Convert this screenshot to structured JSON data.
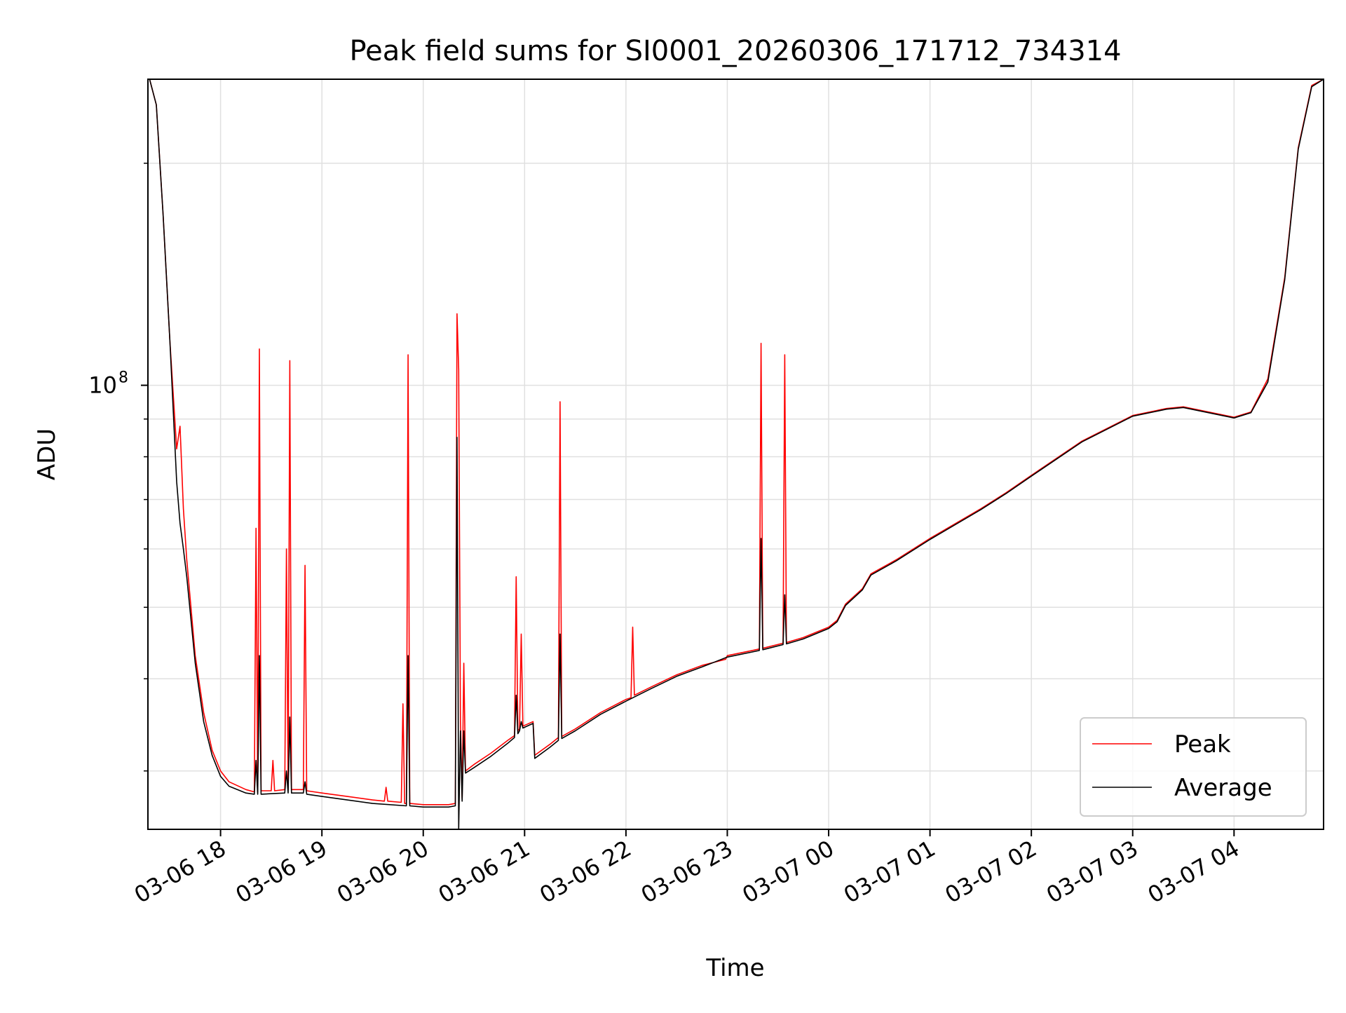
{
  "chart_data": {
    "type": "line",
    "title": "Peak field sums for SI0001_20260306_171712_734314",
    "xlabel": "Time",
    "ylabel": "ADU",
    "y_scale": "log",
    "ylim": [
      25000000,
      260000000
    ],
    "xlim": [
      "2026-03-06 17:17",
      "2026-03-07 04:53"
    ],
    "grid": true,
    "legend_position": "lower-right",
    "x_ticks": [
      "03-06 18",
      "03-06 19",
      "03-06 20",
      "03-06 21",
      "03-06 22",
      "03-06 23",
      "03-07 00",
      "03-07 01",
      "03-07 02",
      "03-07 03",
      "03-07 04"
    ],
    "y_ticks": [
      {
        "label": "10",
        "exponent": "8",
        "value": 100000000
      }
    ],
    "y_minor_ticks": [
      30000000,
      40000000,
      50000000,
      60000000,
      70000000,
      80000000,
      90000000,
      200000000
    ],
    "series": [
      {
        "name": "Peak",
        "color": "#ff0000",
        "points": [
          [
            "2026-03-06 17:18",
            260000000
          ],
          [
            "2026-03-06 17:22",
            240000000
          ],
          [
            "2026-03-06 17:26",
            170000000
          ],
          [
            "2026-03-06 17:30",
            115000000
          ],
          [
            "2026-03-06 17:34",
            82000000
          ],
          [
            "2026-03-06 17:36",
            88000000
          ],
          [
            "2026-03-06 17:38",
            68000000
          ],
          [
            "2026-03-06 17:40",
            58000000
          ],
          [
            "2026-03-06 17:45",
            43000000
          ],
          [
            "2026-03-06 17:50",
            36000000
          ],
          [
            "2026-03-06 17:55",
            32000000
          ],
          [
            "2026-03-06 18:00",
            30000000
          ],
          [
            "2026-03-06 18:05",
            29000000
          ],
          [
            "2026-03-06 18:15",
            28300000
          ],
          [
            "2026-03-06 18:20",
            28100000
          ],
          [
            "2026-03-06 18:21",
            64000000
          ],
          [
            "2026-03-06 18:22",
            28100000
          ],
          [
            "2026-03-06 18:23",
            112000000
          ],
          [
            "2026-03-06 18:24",
            28200000
          ],
          [
            "2026-03-06 18:30",
            28200000
          ],
          [
            "2026-03-06 18:31",
            31000000
          ],
          [
            "2026-03-06 18:32",
            28200000
          ],
          [
            "2026-03-06 18:38",
            28300000
          ],
          [
            "2026-03-06 18:39",
            60000000
          ],
          [
            "2026-03-06 18:40",
            28300000
          ],
          [
            "2026-03-06 18:41",
            108000000
          ],
          [
            "2026-03-06 18:42",
            28300000
          ],
          [
            "2026-03-06 18:49",
            28300000
          ],
          [
            "2026-03-06 18:50",
            57000000
          ],
          [
            "2026-03-06 18:51",
            28200000
          ],
          [
            "2026-03-06 19:00",
            28000000
          ],
          [
            "2026-03-06 19:15",
            27700000
          ],
          [
            "2026-03-06 19:30",
            27400000
          ],
          [
            "2026-03-06 19:37",
            27300000
          ],
          [
            "2026-03-06 19:38",
            28500000
          ],
          [
            "2026-03-06 19:39",
            27300000
          ],
          [
            "2026-03-06 19:47",
            27200000
          ],
          [
            "2026-03-06 19:48",
            37000000
          ],
          [
            "2026-03-06 19:49",
            27100000
          ],
          [
            "2026-03-06 19:50",
            27100000
          ],
          [
            "2026-03-06 19:51",
            110000000
          ],
          [
            "2026-03-06 19:52",
            27100000
          ],
          [
            "2026-03-06 20:00",
            27000000
          ],
          [
            "2026-03-06 20:15",
            27000000
          ],
          [
            "2026-03-06 20:19",
            27100000
          ],
          [
            "2026-03-06 20:20",
            125000000
          ],
          [
            "2026-03-06 20:21",
            105000000
          ],
          [
            "2026-03-06 20:22",
            35000000
          ],
          [
            "2026-03-06 20:23",
            27500000
          ],
          [
            "2026-03-06 20:24",
            42000000
          ],
          [
            "2026-03-06 20:25",
            30000000
          ],
          [
            "2026-03-06 20:30",
            30600000
          ],
          [
            "2026-03-06 20:40",
            31700000
          ],
          [
            "2026-03-06 20:50",
            33000000
          ],
          [
            "2026-03-06 20:54",
            33500000
          ],
          [
            "2026-03-06 20:55",
            55000000
          ],
          [
            "2026-03-06 20:56",
            34000000
          ],
          [
            "2026-03-06 20:57",
            34200000
          ],
          [
            "2026-03-06 20:58",
            46000000
          ],
          [
            "2026-03-06 20:59",
            34500000
          ],
          [
            "2026-03-06 21:05",
            35000000
          ],
          [
            "2026-03-06 21:06",
            31500000
          ],
          [
            "2026-03-06 21:15",
            32600000
          ],
          [
            "2026-03-06 21:20",
            33300000
          ],
          [
            "2026-03-06 21:21",
            95000000
          ],
          [
            "2026-03-06 21:22",
            33400000
          ],
          [
            "2026-03-06 21:30",
            34200000
          ],
          [
            "2026-03-06 21:45",
            36000000
          ],
          [
            "2026-03-06 22:00",
            37500000
          ],
          [
            "2026-03-06 22:03",
            37700000
          ],
          [
            "2026-03-06 22:04",
            47000000
          ],
          [
            "2026-03-06 22:05",
            38000000
          ],
          [
            "2026-03-06 22:15",
            39000000
          ],
          [
            "2026-03-06 22:30",
            40500000
          ],
          [
            "2026-03-06 22:45",
            41700000
          ],
          [
            "2026-03-06 22:59",
            42500000
          ],
          [
            "2026-03-06 23:00",
            43000000
          ],
          [
            "2026-03-06 23:15",
            43700000
          ],
          [
            "2026-03-06 23:19",
            43900000
          ],
          [
            "2026-03-06 23:20",
            114000000
          ],
          [
            "2026-03-06 23:21",
            44000000
          ],
          [
            "2026-03-06 23:33",
            44700000
          ],
          [
            "2026-03-06 23:34",
            110000000
          ],
          [
            "2026-03-06 23:35",
            44800000
          ],
          [
            "2026-03-06 23:45",
            45500000
          ],
          [
            "2026-03-07 00:00",
            47000000
          ],
          [
            "2026-03-07 00:05",
            48000000
          ],
          [
            "2026-03-07 00:10",
            50500000
          ],
          [
            "2026-03-07 00:20",
            53000000
          ],
          [
            "2026-03-07 00:25",
            55500000
          ],
          [
            "2026-03-07 00:40",
            58000000
          ],
          [
            "2026-03-07 01:00",
            62000000
          ],
          [
            "2026-03-07 01:30",
            68000000
          ],
          [
            "2026-03-07 01:45",
            71500000
          ],
          [
            "2026-03-07 02:00",
            75500000
          ],
          [
            "2026-03-07 02:30",
            84000000
          ],
          [
            "2026-03-07 03:00",
            91000000
          ],
          [
            "2026-03-07 03:20",
            93000000
          ],
          [
            "2026-03-07 03:30",
            93500000
          ],
          [
            "2026-03-07 04:00",
            90500000
          ],
          [
            "2026-03-07 04:10",
            92000000
          ],
          [
            "2026-03-07 04:20",
            102000000
          ],
          [
            "2026-03-07 04:30",
            140000000
          ],
          [
            "2026-03-07 04:38",
            210000000
          ],
          [
            "2026-03-07 04:46",
            255000000
          ],
          [
            "2026-03-07 04:53",
            260000000
          ]
        ]
      },
      {
        "name": "Average",
        "color": "#000000",
        "points": [
          [
            "2026-03-06 17:18",
            260000000
          ],
          [
            "2026-03-06 17:22",
            240000000
          ],
          [
            "2026-03-06 17:26",
            170000000
          ],
          [
            "2026-03-06 17:30",
            115000000
          ],
          [
            "2026-03-06 17:34",
            74000000
          ],
          [
            "2026-03-06 17:36",
            65000000
          ],
          [
            "2026-03-06 17:38",
            60000000
          ],
          [
            "2026-03-06 17:40",
            55000000
          ],
          [
            "2026-03-06 17:45",
            42000000
          ],
          [
            "2026-03-06 17:50",
            35000000
          ],
          [
            "2026-03-06 17:55",
            31500000
          ],
          [
            "2026-03-06 18:00",
            29500000
          ],
          [
            "2026-03-06 18:05",
            28600000
          ],
          [
            "2026-03-06 18:15",
            28000000
          ],
          [
            "2026-03-06 18:20",
            27900000
          ],
          [
            "2026-03-06 18:21",
            31000000
          ],
          [
            "2026-03-06 18:22",
            27900000
          ],
          [
            "2026-03-06 18:23",
            43000000
          ],
          [
            "2026-03-06 18:24",
            27900000
          ],
          [
            "2026-03-06 18:38",
            28000000
          ],
          [
            "2026-03-06 18:39",
            30000000
          ],
          [
            "2026-03-06 18:40",
            28000000
          ],
          [
            "2026-03-06 18:41",
            35500000
          ],
          [
            "2026-03-06 18:42",
            28000000
          ],
          [
            "2026-03-06 18:49",
            28000000
          ],
          [
            "2026-03-06 18:50",
            29000000
          ],
          [
            "2026-03-06 18:51",
            27900000
          ],
          [
            "2026-03-06 19:00",
            27700000
          ],
          [
            "2026-03-06 19:15",
            27400000
          ],
          [
            "2026-03-06 19:30",
            27100000
          ],
          [
            "2026-03-06 19:50",
            26900000
          ],
          [
            "2026-03-06 19:51",
            43000000
          ],
          [
            "2026-03-06 19:52",
            26900000
          ],
          [
            "2026-03-06 20:00",
            26800000
          ],
          [
            "2026-03-06 20:15",
            26800000
          ],
          [
            "2026-03-06 20:19",
            26900000
          ],
          [
            "2026-03-06 20:20",
            85000000
          ],
          [
            "2026-03-06 20:21",
            25000000
          ],
          [
            "2026-03-06 20:22",
            34000000
          ],
          [
            "2026-03-06 20:23",
            27300000
          ],
          [
            "2026-03-06 20:24",
            34000000
          ],
          [
            "2026-03-06 20:25",
            29800000
          ],
          [
            "2026-03-06 20:30",
            30300000
          ],
          [
            "2026-03-06 20:40",
            31400000
          ],
          [
            "2026-03-06 20:50",
            32700000
          ],
          [
            "2026-03-06 20:54",
            33300000
          ],
          [
            "2026-03-06 20:55",
            38000000
          ],
          [
            "2026-03-06 20:56",
            33700000
          ],
          [
            "2026-03-06 20:57",
            34000000
          ],
          [
            "2026-03-06 20:58",
            35000000
          ],
          [
            "2026-03-06 20:59",
            34300000
          ],
          [
            "2026-03-06 21:05",
            34800000
          ],
          [
            "2026-03-06 21:06",
            31200000
          ],
          [
            "2026-03-06 21:15",
            32300000
          ],
          [
            "2026-03-06 21:20",
            33000000
          ],
          [
            "2026-03-06 21:21",
            46000000
          ],
          [
            "2026-03-06 21:22",
            33200000
          ],
          [
            "2026-03-06 21:30",
            34000000
          ],
          [
            "2026-03-06 21:45",
            35800000
          ],
          [
            "2026-03-06 22:00",
            37300000
          ],
          [
            "2026-03-06 22:15",
            38800000
          ],
          [
            "2026-03-06 22:30",
            40300000
          ],
          [
            "2026-03-06 22:45",
            41500000
          ],
          [
            "2026-03-06 23:00",
            42800000
          ],
          [
            "2026-03-06 23:15",
            43500000
          ],
          [
            "2026-03-06 23:19",
            43700000
          ],
          [
            "2026-03-06 23:20",
            62000000
          ],
          [
            "2026-03-06 23:21",
            43800000
          ],
          [
            "2026-03-06 23:33",
            44500000
          ],
          [
            "2026-03-06 23:34",
            52000000
          ],
          [
            "2026-03-06 23:35",
            44600000
          ],
          [
            "2026-03-06 23:45",
            45300000
          ],
          [
            "2026-03-07 00:00",
            46800000
          ],
          [
            "2026-03-07 00:05",
            47800000
          ],
          [
            "2026-03-07 00:10",
            50300000
          ],
          [
            "2026-03-07 00:20",
            52800000
          ],
          [
            "2026-03-07 00:25",
            55300000
          ],
          [
            "2026-03-07 00:40",
            57800000
          ],
          [
            "2026-03-07 01:00",
            61800000
          ],
          [
            "2026-03-07 01:30",
            67800000
          ],
          [
            "2026-03-07 01:45",
            71300000
          ],
          [
            "2026-03-07 02:00",
            75300000
          ],
          [
            "2026-03-07 02:30",
            83800000
          ],
          [
            "2026-03-07 03:00",
            90800000
          ],
          [
            "2026-03-07 03:20",
            92800000
          ],
          [
            "2026-03-07 03:30",
            93300000
          ],
          [
            "2026-03-07 04:00",
            90300000
          ],
          [
            "2026-03-07 04:10",
            91800000
          ],
          [
            "2026-03-07 04:20",
            101000000
          ],
          [
            "2026-03-07 04:30",
            139000000
          ],
          [
            "2026-03-07 04:38",
            209000000
          ],
          [
            "2026-03-07 04:46",
            254000000
          ],
          [
            "2026-03-07 04:53",
            260000000
          ]
        ]
      }
    ]
  }
}
